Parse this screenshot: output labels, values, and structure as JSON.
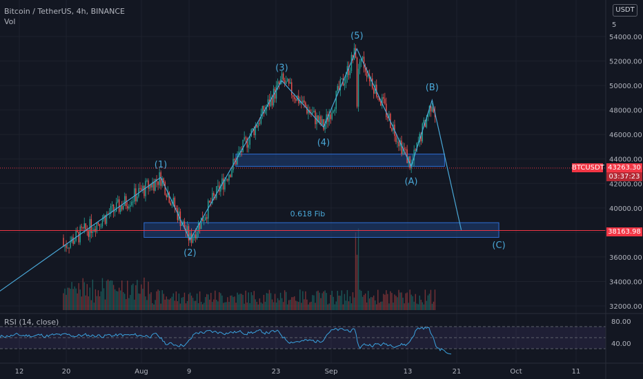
{
  "header": {
    "symbol": "Bitcoin / TetherUS, 4h, BINANCE",
    "indicator": "Vol"
  },
  "currency_badge": "USDT",
  "rsi_label": "RSI (14, close)",
  "price_tags": {
    "symbol": "BTCUSDT",
    "last_price": "43263.30",
    "countdown": "03:37:23",
    "target_price": "38163.98"
  },
  "annotations": {
    "fib": "0.618 Fib"
  },
  "colors": {
    "bg": "#131722",
    "up": "#26a69a",
    "down": "#ef5350",
    "wave": "#4aa8d8",
    "zone_fill": "#1e3f7a",
    "zone_border": "#2f6fd6",
    "rsi": "#3ba4e0",
    "hline": "#f23645"
  },
  "chart_data": {
    "type": "candlestick",
    "title": "Bitcoin / TetherUS, 4h, BINANCE",
    "ylim": [
      31500,
      55500
    ],
    "y_ticks": [
      32000,
      34000,
      36000,
      38000,
      40000,
      42000,
      44000,
      46000,
      48000,
      50000,
      52000,
      54000
    ],
    "y_tick_labels": [
      "32000.00",
      "34000.00",
      "36000.00",
      "38000.00",
      "40000.00",
      "42000.00",
      "44000.00",
      "46000.00",
      "48000.00",
      "50000.00",
      "52000.00",
      "54000.00"
    ],
    "x_ticks": [
      "12",
      "20",
      "Aug",
      "9",
      "23",
      "Sep",
      "13",
      "21",
      "Oct",
      "11"
    ],
    "x_ticks_top_clipped": "5",
    "wave_points": [
      {
        "label": "",
        "x": -24,
        "price": 31900
      },
      {
        "label": "(1)",
        "x": 20,
        "price": 42500
      },
      {
        "label": "(2)",
        "x": 27,
        "price": 37400
      },
      {
        "label": "(3)",
        "x": 49,
        "price": 50400
      },
      {
        "label": "(4)",
        "x": 59,
        "price": 46600
      },
      {
        "label": "(5)",
        "x": 67,
        "price": 53000
      },
      {
        "label": "(A)",
        "x": 80,
        "price": 43400
      },
      {
        "label": "(B)",
        "x": 85,
        "price": 48800
      },
      {
        "label": "(C)",
        "x": 92,
        "price": 38200
      }
    ],
    "label_positions": [
      {
        "label": "(1)",
        "x": 20,
        "price": 43600
      },
      {
        "label": "(2)",
        "x": 27,
        "price": 36400
      },
      {
        "label": "(3)",
        "x": 49,
        "price": 51500
      },
      {
        "label": "(4)",
        "x": 59,
        "price": 45400
      },
      {
        "label": "(5)",
        "x": 67,
        "price": 54100
      },
      {
        "label": "(A)",
        "x": 80,
        "price": 42200
      },
      {
        "label": "(B)",
        "x": 85,
        "price": 49900
      },
      {
        "label": "(C)",
        "x": 101,
        "price": 37000
      }
    ],
    "zones": [
      {
        "name": "support-zone",
        "x1": 38,
        "x2": 88,
        "price_low": 43400,
        "price_high": 44400
      },
      {
        "name": "fib-zone",
        "x1": 16,
        "x2": 101,
        "price_low": 37600,
        "price_high": 38800
      }
    ],
    "hlines": [
      {
        "name": "last-price-line",
        "price": 43263.3
      },
      {
        "name": "target-line",
        "price": 38163.98
      }
    ],
    "rsi": {
      "ylim": [
        10,
        90
      ],
      "ticks": [
        80,
        40
      ],
      "tick_labels": [
        "80.00",
        "40.00"
      ],
      "band": [
        70,
        30
      ]
    }
  }
}
